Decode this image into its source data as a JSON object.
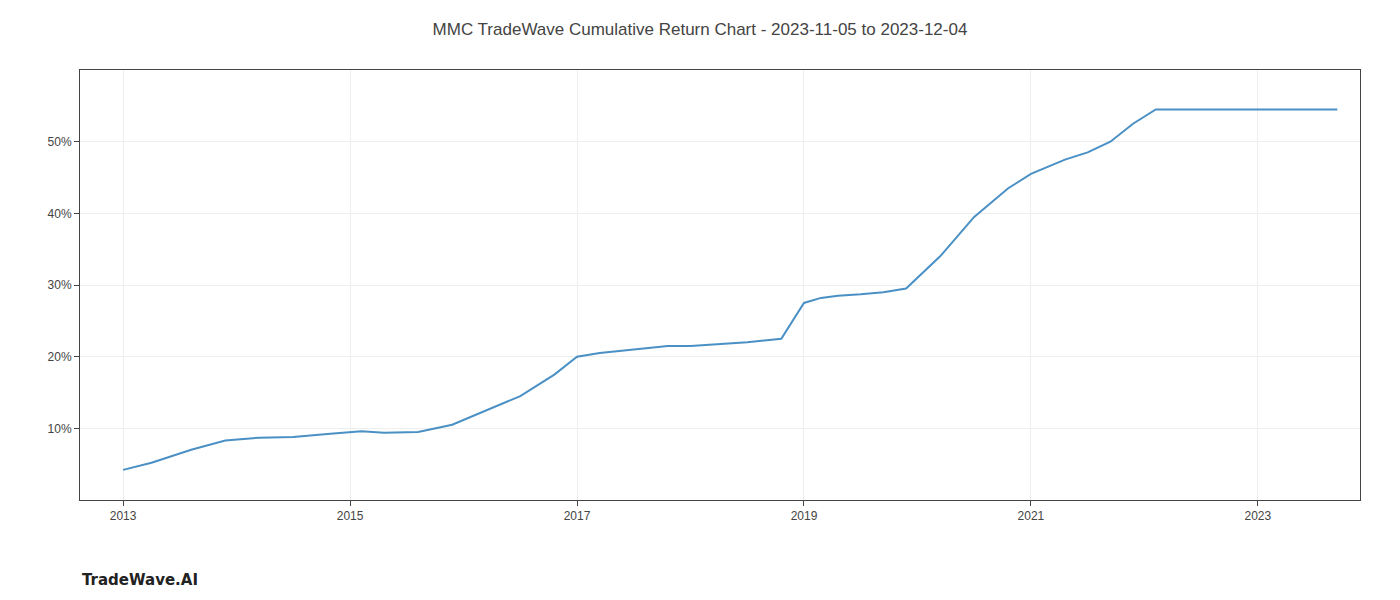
{
  "chart_data": {
    "type": "line",
    "title": "MMC TradeWave Cumulative Return Chart - 2023-11-05 to 2023-12-04",
    "annotations": [
      "TradeWave.AI"
    ],
    "x": [
      2013.0,
      2013.25,
      2013.6,
      2013.9,
      2014.2,
      2014.5,
      2014.8,
      2015.0,
      2015.1,
      2015.3,
      2015.6,
      2015.9,
      2016.2,
      2016.5,
      2016.8,
      2017.0,
      2017.2,
      2017.5,
      2017.8,
      2018.0,
      2018.2,
      2018.5,
      2018.8,
      2019.0,
      2019.15,
      2019.3,
      2019.5,
      2019.7,
      2019.9,
      2020.2,
      2020.5,
      2020.8,
      2021.0,
      2021.15,
      2021.3,
      2021.5,
      2021.7,
      2021.9,
      2022.1,
      2022.3,
      2022.5,
      2022.7,
      2022.9,
      2023.1,
      2023.4,
      2023.7
    ],
    "values": [
      4.2,
      5.2,
      7.0,
      8.3,
      8.7,
      8.8,
      9.2,
      9.5,
      9.6,
      9.4,
      9.5,
      10.5,
      12.5,
      14.5,
      17.5,
      20.0,
      20.5,
      21.0,
      21.5,
      21.5,
      21.7,
      22.0,
      22.5,
      27.5,
      28.2,
      28.5,
      28.7,
      29.0,
      29.5,
      34.0,
      39.5,
      43.5,
      45.5,
      46.5,
      47.5,
      48.5,
      50.0,
      52.5,
      54.5,
      54.5,
      54.5,
      54.5,
      54.5,
      54.5,
      54.5,
      54.5
    ],
    "color": "#4a90c4",
    "xlim": [
      2012.62,
      2023.9
    ],
    "ylim": [
      0,
      60
    ],
    "xticks": [
      2013,
      2015,
      2017,
      2019,
      2021,
      2023
    ],
    "yticks": [
      {
        "value": 10,
        "label": "10%"
      },
      {
        "value": 20,
        "label": "20%"
      },
      {
        "value": 30,
        "label": "30%"
      },
      {
        "value": 40,
        "label": "40%"
      },
      {
        "value": 50,
        "label": "50%"
      }
    ],
    "grid": true
  }
}
